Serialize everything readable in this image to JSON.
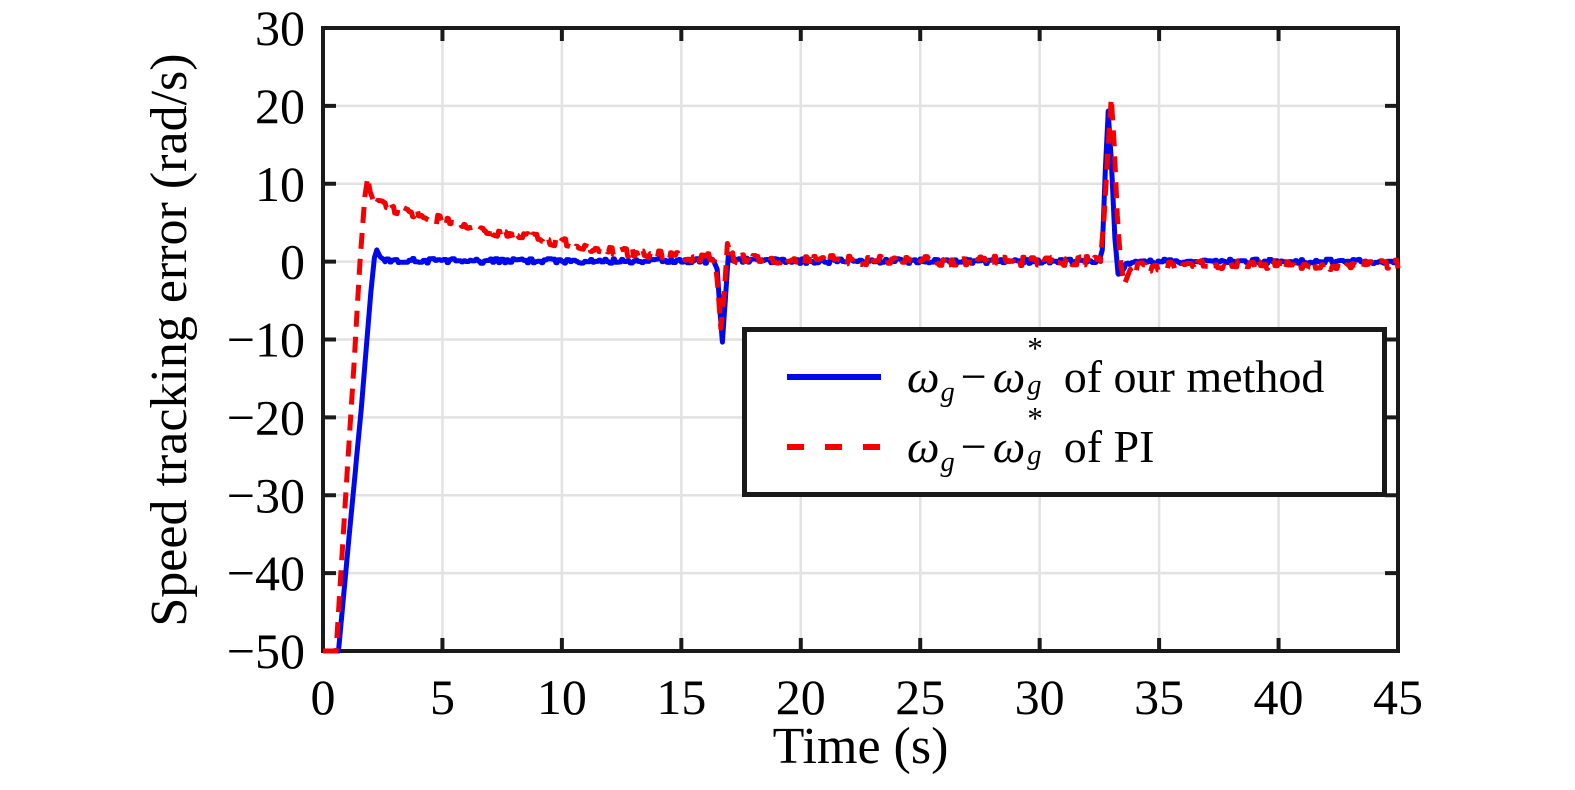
{
  "figure": {
    "ylabel": "Speed tracking error (rad/s)",
    "xlabel": "Time (s)"
  },
  "legend": {
    "items": [
      {
        "math": {
          "omega": "ω",
          "sub": "g",
          "minus": "−",
          "omega2": "ω",
          "sup": "*",
          "sub2": "g"
        },
        "suffix": "of our method"
      },
      {
        "math": {
          "omega": "ω",
          "sub": "g",
          "minus": "−",
          "omega2": "ω",
          "sup": "*",
          "sub2": "g"
        },
        "suffix": "of PI"
      }
    ]
  },
  "chart_data": {
    "type": "line",
    "title": "",
    "xlabel": "Time (s)",
    "ylabel": "Speed tracking error (rad/s)",
    "xlim": [
      0,
      45
    ],
    "ylim": [
      -50,
      30
    ],
    "grid": true,
    "legend_position": "inside upper-right area",
    "axes": {
      "x_ticks": [
        0,
        5,
        10,
        15,
        20,
        25,
        30,
        35,
        40,
        45
      ],
      "x_tick_labels": [
        "0",
        "5",
        "10",
        "15",
        "20",
        "25",
        "30",
        "35",
        "40",
        "45"
      ],
      "y_ticks": [
        -50,
        -40,
        -30,
        -20,
        -10,
        0,
        10,
        20,
        30
      ],
      "y_tick_labels": [
        "−50",
        "−40",
        "−30",
        "−20",
        "−10",
        "0",
        "10",
        "20",
        "30"
      ]
    },
    "series": [
      {
        "name": "ωg − ωg* of our method",
        "color": "#0008ee",
        "style": "solid",
        "noise_amplitude": 0.3,
        "noise_from_t": 2.6,
        "keypoints": [
          [
            0,
            -50
          ],
          [
            0.65,
            -50
          ],
          [
            1.1,
            -35
          ],
          [
            1.6,
            -19
          ],
          [
            2.0,
            -4
          ],
          [
            2.15,
            0.5
          ],
          [
            2.25,
            1.5
          ],
          [
            2.4,
            0.6
          ],
          [
            2.6,
            0.15
          ],
          [
            4,
            0.1
          ],
          [
            8,
            0.08
          ],
          [
            12,
            0.1
          ],
          [
            16.35,
            0.1
          ],
          [
            16.5,
            -1
          ],
          [
            16.62,
            -6.5
          ],
          [
            16.72,
            -10.3
          ],
          [
            16.84,
            -5
          ],
          [
            16.97,
            0.9
          ],
          [
            17.12,
            0.25
          ],
          [
            20,
            0.05
          ],
          [
            24,
            0.08
          ],
          [
            28,
            0.05
          ],
          [
            32.5,
            0.1
          ],
          [
            32.62,
            1.5
          ],
          [
            32.75,
            12
          ],
          [
            32.87,
            19.3
          ],
          [
            33.0,
            13
          ],
          [
            33.15,
            3
          ],
          [
            33.28,
            -1.5
          ],
          [
            33.42,
            -1.2
          ],
          [
            33.6,
            -0.3
          ],
          [
            34,
            0
          ],
          [
            38,
            0.05
          ],
          [
            42,
            0.02
          ],
          [
            45,
            0.05
          ]
        ]
      },
      {
        "name": "ωg − ωg* of PI",
        "color": "#f40000",
        "style": "dashed",
        "noise_amplitude": 0.6,
        "noise_from_t": 2.15,
        "keypoints": [
          [
            0,
            -50
          ],
          [
            0.55,
            -50
          ],
          [
            0.95,
            -30
          ],
          [
            1.3,
            -13
          ],
          [
            1.55,
            0
          ],
          [
            1.75,
            8.3
          ],
          [
            1.87,
            10.8
          ],
          [
            1.97,
            9.0
          ],
          [
            2.1,
            7.9
          ],
          [
            2.3,
            7.4
          ],
          [
            2.8,
            7.0
          ],
          [
            3.5,
            6.4
          ],
          [
            4.2,
            5.8
          ],
          [
            5.0,
            5.2
          ],
          [
            6.0,
            4.6
          ],
          [
            7.0,
            4.0
          ],
          [
            8.0,
            3.4
          ],
          [
            9.0,
            2.9
          ],
          [
            10.0,
            2.4
          ],
          [
            11.0,
            1.9
          ],
          [
            12.0,
            1.5
          ],
          [
            13.0,
            1.1
          ],
          [
            14.0,
            0.85
          ],
          [
            15.0,
            0.65
          ],
          [
            16.0,
            0.5
          ],
          [
            16.4,
            0.45
          ],
          [
            16.52,
            -3
          ],
          [
            16.65,
            -8.6
          ],
          [
            16.8,
            -4
          ],
          [
            16.93,
            2.3
          ],
          [
            17.1,
            0.6
          ],
          [
            17.5,
            0.3
          ],
          [
            20,
            0.2
          ],
          [
            24,
            0.15
          ],
          [
            28,
            0.1
          ],
          [
            32.4,
            0.1
          ],
          [
            32.55,
            0.5
          ],
          [
            32.7,
            6
          ],
          [
            32.85,
            14
          ],
          [
            33.0,
            21
          ],
          [
            33.12,
            15
          ],
          [
            33.25,
            6
          ],
          [
            33.4,
            -0.5
          ],
          [
            33.55,
            -2.8
          ],
          [
            33.75,
            -1.3
          ],
          [
            34.1,
            -0.7
          ],
          [
            36,
            -0.5
          ],
          [
            40,
            -0.45
          ],
          [
            45,
            -0.4
          ]
        ]
      }
    ]
  }
}
